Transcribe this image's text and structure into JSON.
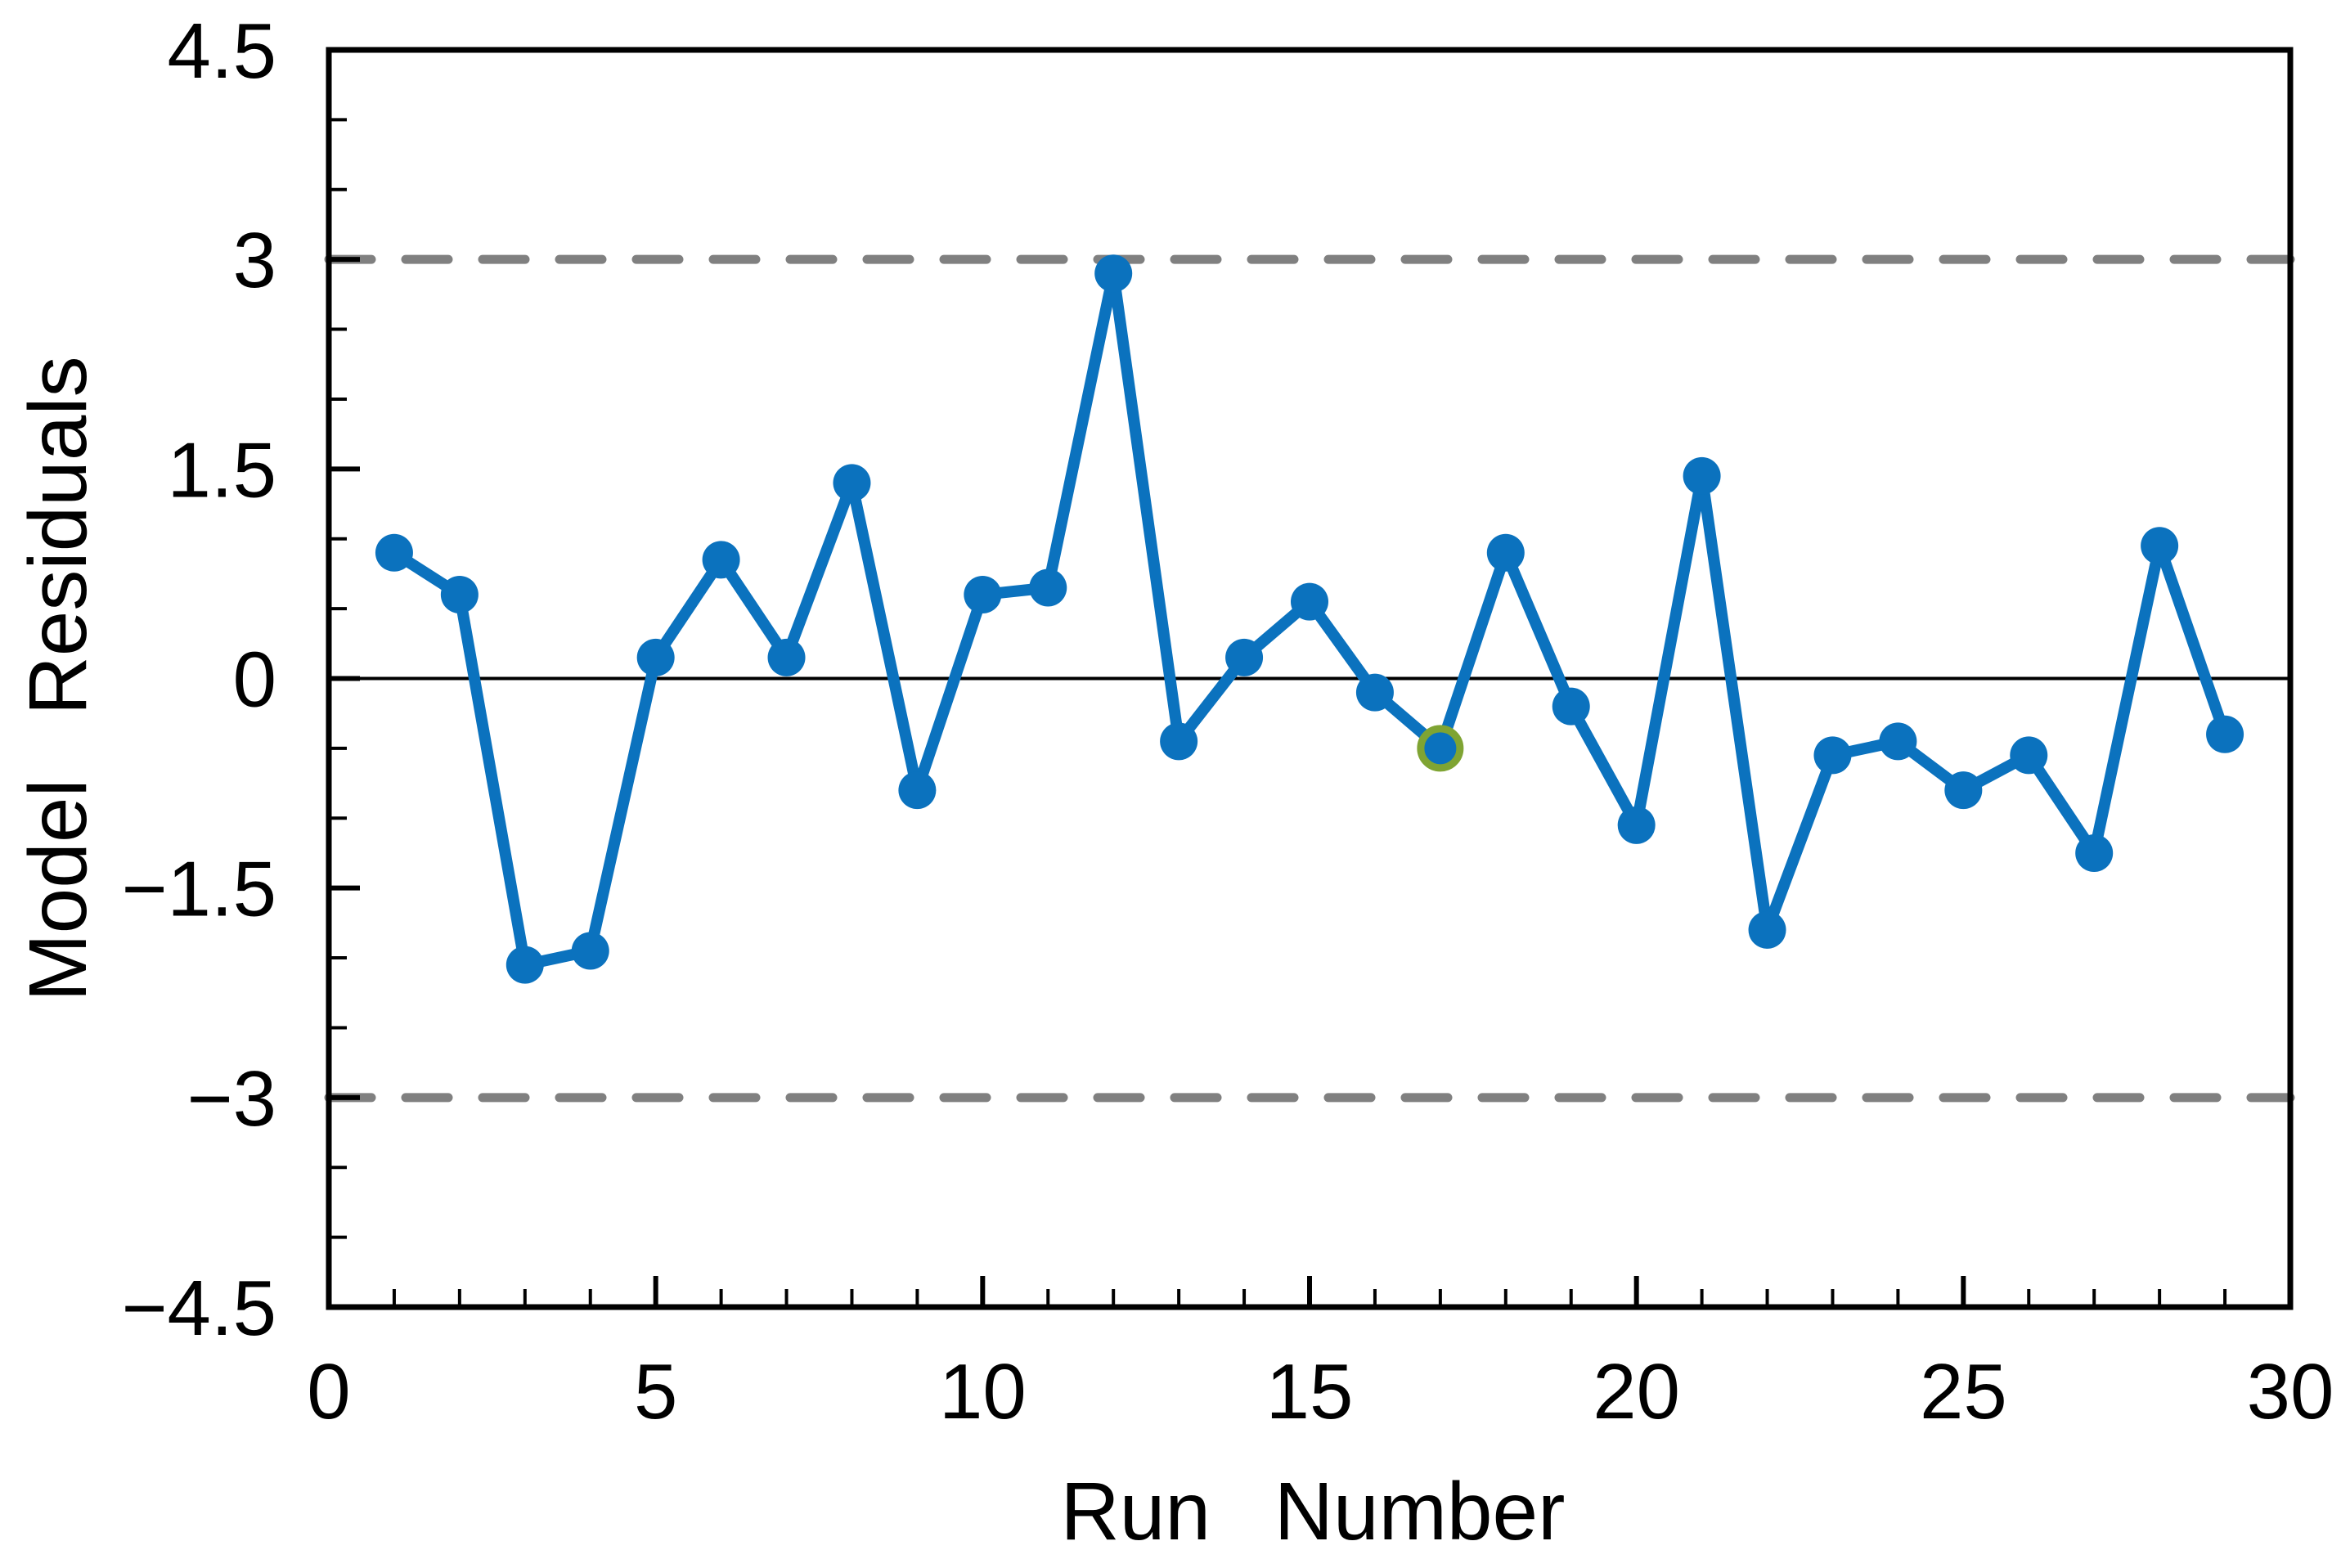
{
  "chart_data": {
    "type": "line",
    "title": "",
    "xlabel": "Run Number",
    "ylabel": "Model Residuals",
    "series": [
      {
        "name": "Model Residuals",
        "x": [
          1,
          2,
          3,
          4,
          5,
          6,
          7,
          8,
          9,
          10,
          11,
          12,
          13,
          14,
          15,
          16,
          17,
          18,
          19,
          20,
          21,
          22,
          23,
          24,
          25,
          26,
          27,
          28,
          29
        ],
        "values": [
          0.9,
          0.6,
          -2.05,
          -1.95,
          0.15,
          0.85,
          0.15,
          1.4,
          -0.8,
          0.6,
          0.65,
          2.9,
          -0.45,
          0.15,
          0.55,
          -0.1,
          -0.5,
          0.9,
          -0.2,
          -1.05,
          1.45,
          -1.8,
          -0.55,
          -0.45,
          -0.8,
          -0.55,
          -1.25,
          0.95,
          -0.4
        ]
      }
    ],
    "xlim": [
      0,
      30
    ],
    "ylim": [
      -4.5,
      4.5
    ],
    "x_major_ticks": [
      0,
      5,
      10,
      15,
      20,
      25,
      30
    ],
    "x_tick_labels": [
      "0",
      "5",
      "10",
      "15",
      "20",
      "25",
      "30"
    ],
    "x_minor_step": 1,
    "y_major_ticks": [
      -4.5,
      -3,
      -1.5,
      0,
      1.5,
      3,
      4.5
    ],
    "y_tick_labels": [
      "−4.5",
      "−3",
      "−1.5",
      "0",
      "1.5",
      "3",
      "4.5"
    ],
    "y_minor_step": 0.5,
    "reference_lines": {
      "zero_line": 0,
      "upper_control_limit": 3,
      "lower_control_limit": -3
    },
    "highlighted_point": {
      "x": 17,
      "value": -0.5,
      "ring_color": "#7FA433"
    },
    "colors": {
      "line": "#0B72BE",
      "marker": "#0B72BE",
      "control_limit_dash": "#808080",
      "axis": "#000000",
      "background": "#FFFFFF"
    },
    "grid": "off",
    "legend": null
  }
}
